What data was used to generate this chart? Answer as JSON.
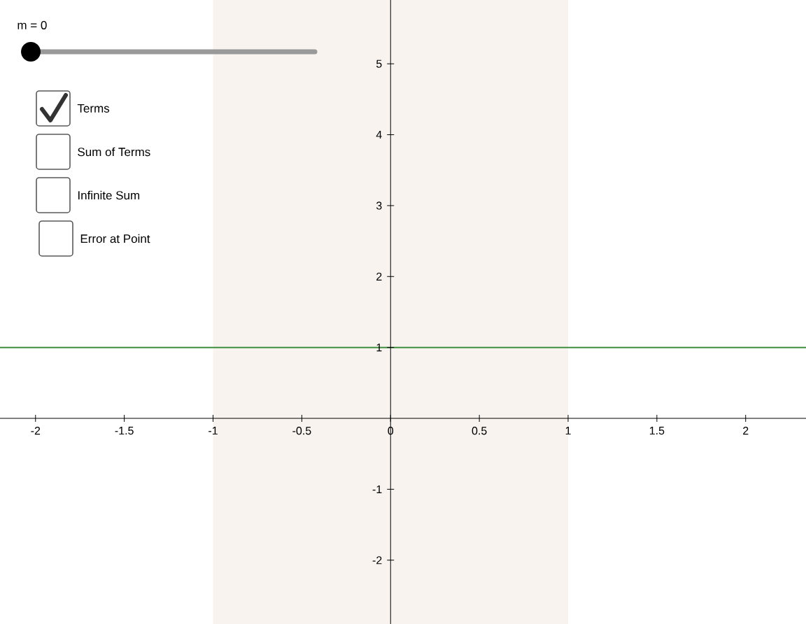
{
  "chart_data": {
    "type": "line",
    "x": [
      -2.2,
      2.34
    ],
    "series": [
      {
        "color": "#3f8f3f",
        "values": [
          1,
          1
        ]
      }
    ],
    "xlim": [
      -2.2,
      2.34
    ],
    "ylim": [
      -2.9,
      5.9
    ],
    "xticks": [
      -2,
      -1.5,
      -1,
      -0.5,
      0,
      0.5,
      1,
      1.5,
      2
    ],
    "yticks": [
      -2,
      -1,
      1,
      2,
      3,
      4,
      5
    ],
    "bands": [
      {
        "axis": "x",
        "from": -1,
        "to": 1,
        "color": "#f8f3ef"
      }
    ],
    "annotations": [
      "m = 0",
      "Terms",
      "Sum of Terms",
      "Infinite Sum",
      "Error at Point"
    ]
  }
}
